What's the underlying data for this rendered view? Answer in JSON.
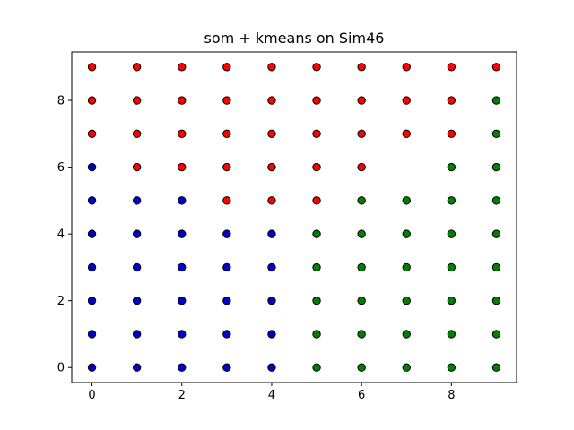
{
  "chart_data": {
    "type": "scatter",
    "title": "som + kmeans on Sim46",
    "xlabel": "",
    "ylabel": "",
    "xlim": [
      -0.45,
      9.45
    ],
    "ylim": [
      -0.45,
      9.45
    ],
    "xticks": [
      0,
      2,
      4,
      6,
      8
    ],
    "yticks": [
      0,
      2,
      4,
      6,
      8
    ],
    "grid": false,
    "colors": {
      "red": "#ff0000",
      "blue": "#0000cc",
      "green": "#008000",
      "edge": "#000000"
    },
    "rows": [
      {
        "y": 9,
        "labels": [
          "red",
          "red",
          "red",
          "red",
          "red",
          "red",
          "red",
          "red",
          "red",
          "red"
        ]
      },
      {
        "y": 8,
        "labels": [
          "red",
          "red",
          "red",
          "red",
          "red",
          "red",
          "red",
          "red",
          "red",
          "green"
        ]
      },
      {
        "y": 7,
        "labels": [
          "red",
          "red",
          "red",
          "red",
          "red",
          "red",
          "red",
          "red",
          "red",
          "green"
        ]
      },
      {
        "y": 6,
        "labels": [
          "blue",
          "red",
          "red",
          "red",
          "red",
          "red",
          "red",
          null,
          "green",
          "green"
        ]
      },
      {
        "y": 5,
        "labels": [
          "blue",
          "blue",
          "blue",
          "red",
          "red",
          "red",
          "green",
          "green",
          "green",
          "green"
        ]
      },
      {
        "y": 4,
        "labels": [
          "blue",
          "blue",
          "blue",
          "blue",
          "blue",
          "green",
          "green",
          "green",
          "green",
          "green"
        ]
      },
      {
        "y": 3,
        "labels": [
          "blue",
          "blue",
          "blue",
          "blue",
          "blue",
          "green",
          "green",
          "green",
          "green",
          "green"
        ]
      },
      {
        "y": 2,
        "labels": [
          "blue",
          "blue",
          "blue",
          "blue",
          "blue",
          "green",
          "green",
          "green",
          "green",
          "green"
        ]
      },
      {
        "y": 1,
        "labels": [
          "blue",
          "blue",
          "blue",
          "blue",
          "blue",
          "green",
          "green",
          "green",
          "green",
          "green"
        ]
      },
      {
        "y": 0,
        "labels": [
          "blue",
          "blue",
          "blue",
          "blue",
          "blue",
          "green",
          "green",
          "green",
          "green",
          "green"
        ]
      }
    ]
  }
}
